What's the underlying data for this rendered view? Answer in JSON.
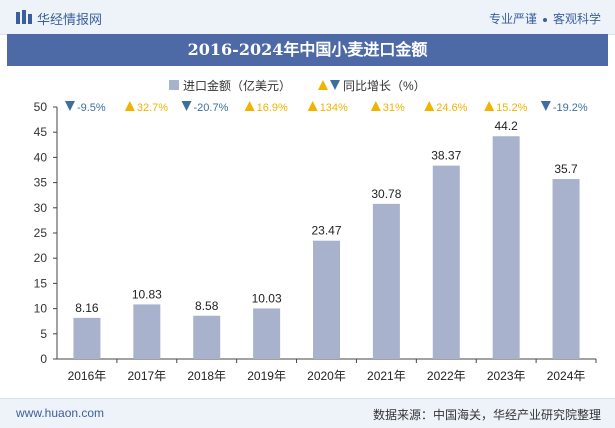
{
  "brand": {
    "name": "华经情报网",
    "slogan_left": "专业严谨",
    "slogan_right": "客观科学"
  },
  "title": "2016-2024年中国小麦进口金额",
  "legend": {
    "bar_label": "进口金额（亿美元）",
    "growth_label": "同比增长（%）"
  },
  "footer": {
    "site": "www.huaon.com",
    "source": "数据来源：中国海关，华经产业研究院整理"
  },
  "colors": {
    "bar": "#a9b2cc",
    "up": "#f0b400",
    "down": "#3d6e9e",
    "title_bg": "#4d6aa6"
  },
  "chart_data": {
    "type": "bar",
    "categories": [
      "2016年",
      "2017年",
      "2018年",
      "2019年",
      "2020年",
      "2021年",
      "2022年",
      "2023年",
      "2024年"
    ],
    "series": [
      {
        "name": "进口金额（亿美元）",
        "values": [
          8.16,
          10.83,
          8.58,
          10.03,
          23.47,
          30.78,
          38.37,
          44.2,
          35.7
        ]
      }
    ],
    "value_labels": [
      "8.16",
      "10.83",
      "8.58",
      "10.03",
      "23.47",
      "30.78",
      "38.37",
      "44.2",
      "35.7"
    ],
    "growth": {
      "name": "同比增长（%）",
      "labels": [
        "-9.5%",
        "32.7%",
        "-20.7%",
        "16.9%",
        "134%",
        "31%",
        "24.6%",
        "15.2%",
        "-19.2%"
      ],
      "direction": [
        "down",
        "up",
        "down",
        "up",
        "up",
        "up",
        "up",
        "up",
        "down"
      ]
    },
    "yticks": [
      "0",
      "5",
      "10",
      "15",
      "20",
      "25",
      "30",
      "35",
      "40",
      "45",
      "50"
    ],
    "ylim": [
      0,
      50
    ],
    "legend_position": "top",
    "grid": false
  }
}
